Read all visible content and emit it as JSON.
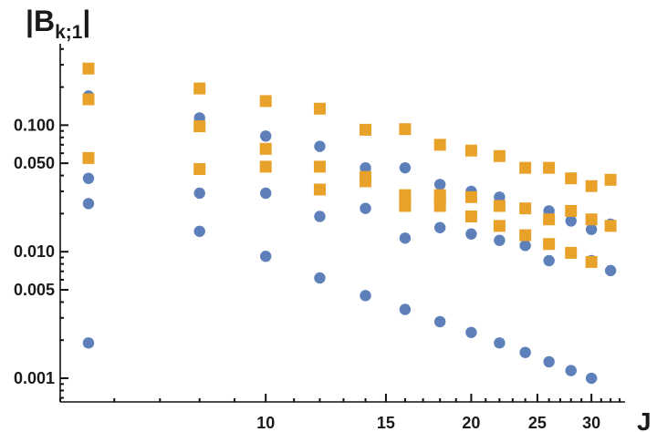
{
  "chart_data": {
    "type": "scatter",
    "ylabel": "|B",
    "ylabel_sub": "k;1",
    "ylabel_close": "|",
    "xlabel": "J",
    "x_scale": "log",
    "y_scale": "log",
    "xlim": [
      5,
      33.5
    ],
    "ylim": [
      0.00065,
      0.44
    ],
    "grid": false,
    "x_ticks": [
      {
        "value": 10,
        "label": "10"
      },
      {
        "value": 15,
        "label": "15"
      },
      {
        "value": 20,
        "label": "20"
      },
      {
        "value": 25,
        "label": "25"
      },
      {
        "value": 30,
        "label": "30"
      }
    ],
    "y_ticks": [
      {
        "value": 0.001,
        "label": "0.001"
      },
      {
        "value": 0.005,
        "label": "0.005"
      },
      {
        "value": 0.01,
        "label": "0.010"
      },
      {
        "value": 0.05,
        "label": "0.050"
      },
      {
        "value": 0.1,
        "label": "0.100"
      }
    ],
    "series": [
      {
        "marker": "circle",
        "color": "#5d7fba",
        "points": [
          [
            5.5,
            0.17
          ],
          [
            5.5,
            0.038
          ],
          [
            5.5,
            0.024
          ],
          [
            5.5,
            0.0019
          ],
          [
            8,
            0.114
          ],
          [
            8,
            0.029
          ],
          [
            8,
            0.0145
          ],
          [
            10,
            0.082
          ],
          [
            10,
            0.029
          ],
          [
            10,
            0.0092
          ],
          [
            12,
            0.068
          ],
          [
            12,
            0.019
          ],
          [
            12,
            0.0062
          ],
          [
            14,
            0.046
          ],
          [
            14,
            0.022
          ],
          [
            14,
            0.0045
          ],
          [
            16,
            0.046
          ],
          [
            16,
            0.0128
          ],
          [
            16,
            0.0035
          ],
          [
            18,
            0.034
          ],
          [
            18,
            0.0155
          ],
          [
            18,
            0.0028
          ],
          [
            20,
            0.03
          ],
          [
            20,
            0.0138
          ],
          [
            20,
            0.0023
          ],
          [
            22,
            0.027
          ],
          [
            22,
            0.0123
          ],
          [
            22,
            0.0019
          ],
          [
            24,
            0.022
          ],
          [
            24,
            0.0112
          ],
          [
            24,
            0.0016
          ],
          [
            26,
            0.021
          ],
          [
            26,
            0.0085
          ],
          [
            26,
            0.00135
          ],
          [
            28,
            0.0175
          ],
          [
            28,
            0.0098
          ],
          [
            28,
            0.00115
          ],
          [
            30,
            0.015
          ],
          [
            30,
            0.0085
          ],
          [
            30,
            0.001
          ],
          [
            32,
            0.0165
          ],
          [
            32,
            0.0071
          ]
        ]
      },
      {
        "marker": "square",
        "color": "#e8a22a",
        "points": [
          [
            5.5,
            0.28
          ],
          [
            5.5,
            0.16
          ],
          [
            5.5,
            0.055
          ],
          [
            8,
            0.195
          ],
          [
            8,
            0.098
          ],
          [
            8,
            0.045
          ],
          [
            10,
            0.155
          ],
          [
            10,
            0.065
          ],
          [
            10,
            0.047
          ],
          [
            12,
            0.135
          ],
          [
            12,
            0.047
          ],
          [
            12,
            0.031
          ],
          [
            14,
            0.092
          ],
          [
            14,
            0.039
          ],
          [
            14,
            0.036
          ],
          [
            16,
            0.093
          ],
          [
            16,
            0.028
          ],
          [
            16,
            0.025
          ],
          [
            16,
            0.023
          ],
          [
            18,
            0.07
          ],
          [
            18,
            0.028
          ],
          [
            18,
            0.026
          ],
          [
            18,
            0.023
          ],
          [
            20,
            0.063
          ],
          [
            20,
            0.027
          ],
          [
            20,
            0.019
          ],
          [
            22,
            0.057
          ],
          [
            22,
            0.023
          ],
          [
            22,
            0.016
          ],
          [
            24,
            0.046
          ],
          [
            24,
            0.022
          ],
          [
            24,
            0.0135
          ],
          [
            26,
            0.046
          ],
          [
            26,
            0.018
          ],
          [
            26,
            0.0115
          ],
          [
            28,
            0.038
          ],
          [
            28,
            0.021
          ],
          [
            28,
            0.0098
          ],
          [
            30,
            0.033
          ],
          [
            30,
            0.018
          ],
          [
            30,
            0.0083
          ],
          [
            32,
            0.037
          ],
          [
            32,
            0.016
          ]
        ]
      }
    ]
  }
}
